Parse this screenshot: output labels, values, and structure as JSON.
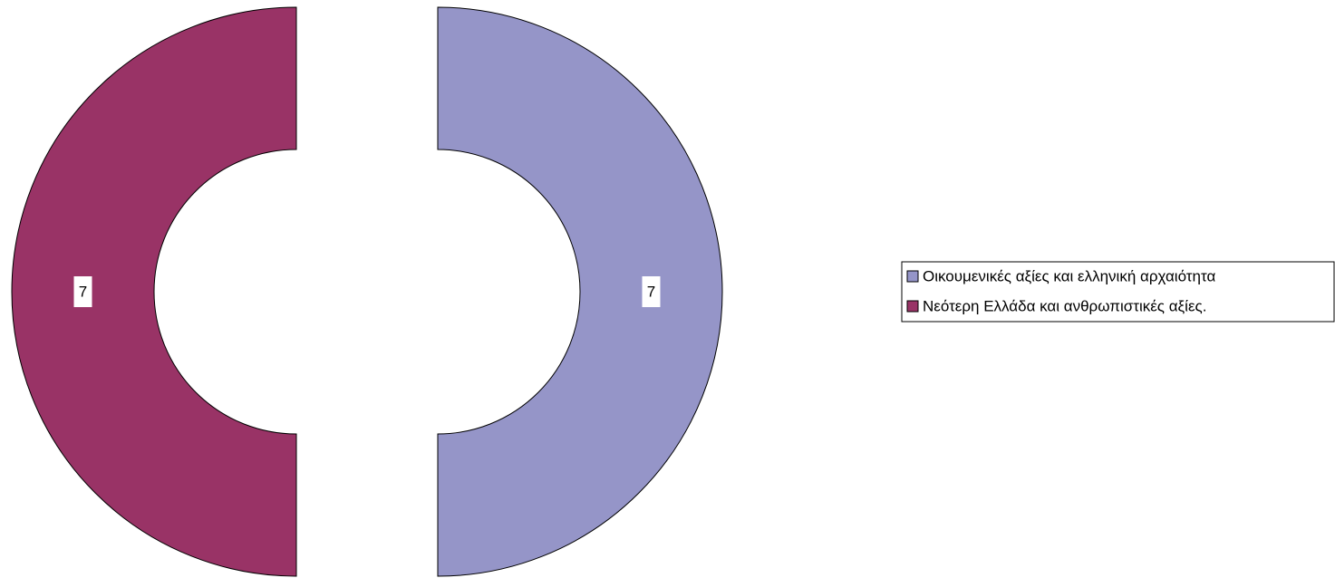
{
  "chart_data": {
    "type": "donut",
    "categories": [
      "Οικουμενικές αξίες και ελληνική αρχαιότητα",
      "Νεότερη Ελλάδα και ανθρωπιστικές αξίες."
    ],
    "values": [
      7,
      7
    ],
    "colors": [
      "#9595c8",
      "#993366"
    ]
  }
}
